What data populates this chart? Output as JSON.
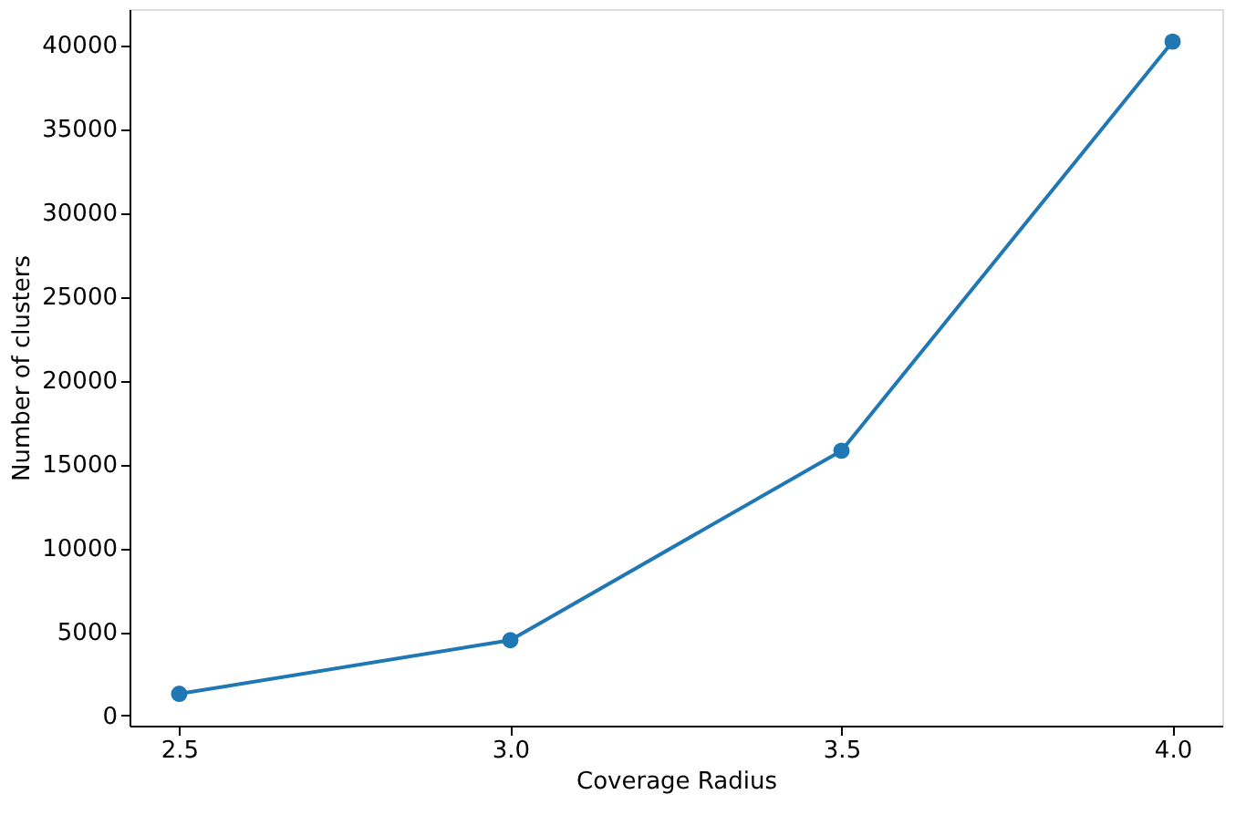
{
  "chart_data": {
    "type": "line",
    "xlabel": "Coverage Radius",
    "ylabel": "Number of clusters",
    "x": [
      2.5,
      3.0,
      3.5,
      4.0
    ],
    "series": [
      {
        "color": "#1f77b4",
        "values": [
          1300,
          4500,
          15800,
          40200
        ]
      }
    ],
    "xlim": [
      2.425,
      4.075
    ],
    "xticks": [
      {
        "value": 2.5,
        "label": "2.5"
      },
      {
        "value": 3.0,
        "label": "3.0"
      },
      {
        "value": 3.5,
        "label": "3.5"
      },
      {
        "value": 4.0,
        "label": "4.0"
      }
    ],
    "ylim": [
      -600,
      42140
    ],
    "yticks": [
      0,
      5000,
      10000,
      15000,
      20000,
      25000,
      30000,
      35000,
      40000
    ],
    "marker": "circle",
    "line_style": "solid",
    "grid": false
  }
}
